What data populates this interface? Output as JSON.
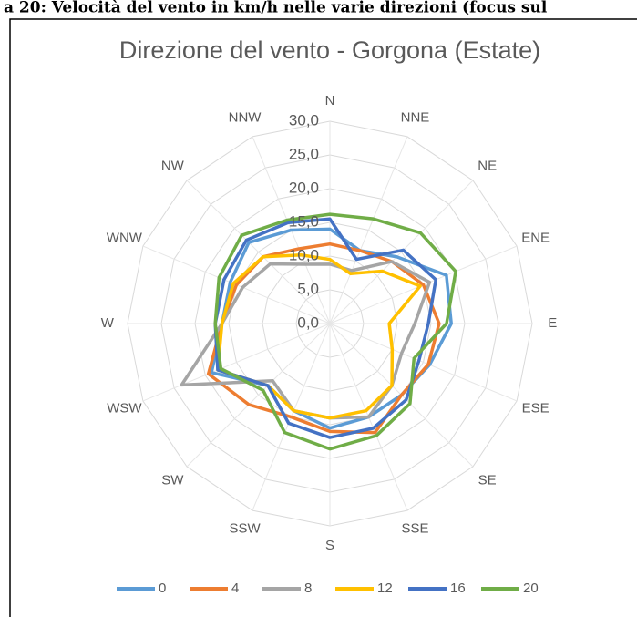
{
  "caption": "a 20: Velocità del vento in km/h nelle varie direzioni (focus sul",
  "chart_data": {
    "type": "radar",
    "title": "Direzione del vento - Gorgona (Estate)",
    "categories": [
      "N",
      "NNE",
      "NE",
      "ENE",
      "E",
      "ESE",
      "SE",
      "SSE",
      "S",
      "SSW",
      "SW",
      "WSW",
      "W",
      "WNW",
      "NW",
      "NNW"
    ],
    "ylim": [
      0,
      30
    ],
    "yticks": [
      {
        "value": 0,
        "label": "0,0"
      },
      {
        "value": 5,
        "label": "5,0"
      },
      {
        "value": 10,
        "label": "10,0"
      },
      {
        "value": 15,
        "label": "15,0"
      },
      {
        "value": 20,
        "label": "20,0"
      },
      {
        "value": 25,
        "label": "25,0"
      },
      {
        "value": 30,
        "label": "30,0"
      }
    ],
    "grid": true,
    "legend": "bottom",
    "series": [
      {
        "name": "0",
        "color": "#5b9bd5",
        "values": [
          14,
          11.7,
          14,
          18.7,
          18,
          16,
          15,
          15,
          15.5,
          14,
          13,
          19,
          16,
          16,
          17,
          15
        ]
      },
      {
        "name": "4",
        "color": "#ed7d31",
        "values": [
          11.8,
          11.7,
          13,
          15,
          16.2,
          15.8,
          15,
          17.5,
          16,
          15,
          17,
          19.5,
          16,
          15,
          14,
          12
        ]
      },
      {
        "name": "8",
        "color": "#a5a5a5",
        "values": [
          8.8,
          8.5,
          13,
          16,
          12.6,
          11.5,
          13,
          15,
          14,
          14,
          12,
          23.8,
          16,
          14,
          12.5,
          9.5
        ]
      },
      {
        "name": "12",
        "color": "#ffc000",
        "values": [
          9.5,
          8,
          11,
          14.5,
          8.8,
          10,
          13,
          14,
          14,
          14,
          13,
          18,
          16,
          15.5,
          14,
          11
        ]
      },
      {
        "name": "16",
        "color": "#4472c4",
        "values": [
          15.5,
          10.3,
          15.4,
          17,
          14.6,
          14.3,
          16,
          16.8,
          16.9,
          16,
          13,
          18,
          17,
          17,
          17.5,
          16.2
        ]
      },
      {
        "name": "20",
        "color": "#70ad47",
        "values": [
          16.2,
          16.8,
          19,
          20.2,
          17.3,
          13.5,
          16.8,
          18,
          18.6,
          17.5,
          14,
          17.5,
          17,
          17.8,
          18.5,
          16.6
        ]
      }
    ]
  }
}
